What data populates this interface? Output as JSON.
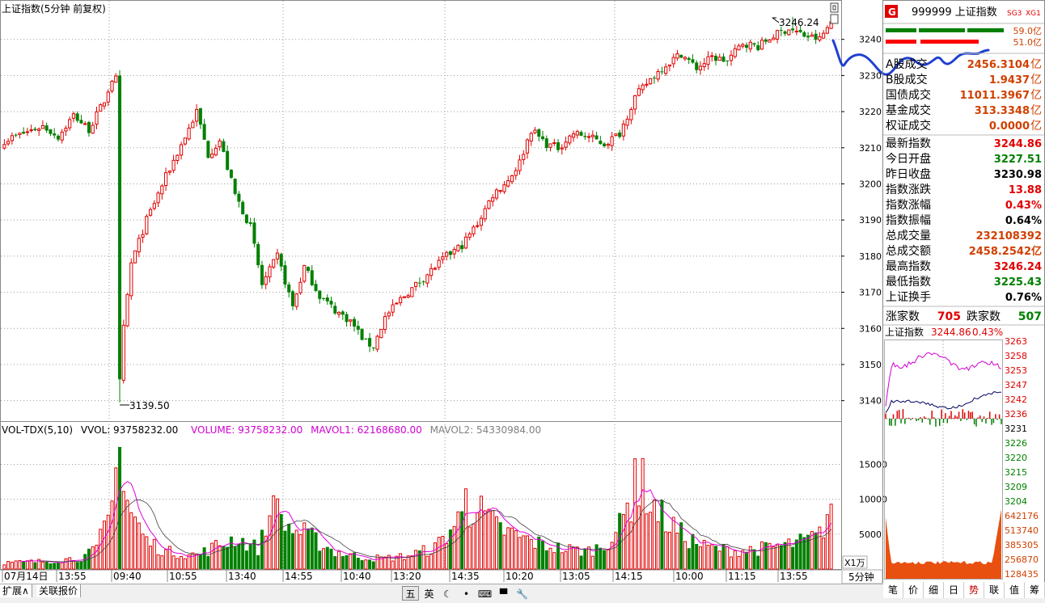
{
  "main": {
    "title": "上证指数(5分钟 前复权)",
    "high_marker": "3246.24",
    "low_marker": "3139.50",
    "period_button": "5分钟",
    "x1_label": "X1万"
  },
  "volume_header": {
    "name": "VOL-TDX(5,10)",
    "vvol": "VVOL: 93758232.00",
    "volume": "VOLUME: 93758232.00",
    "mavol1": "MAVOL1: 62168680.00",
    "mavol2": "MAVOL2: 54330984.00"
  },
  "chart_data": {
    "type": "candlestick",
    "price_axis": {
      "ticks": [
        3140,
        3150,
        3160,
        3170,
        3180,
        3190,
        3200,
        3210,
        3220,
        3230,
        3240
      ],
      "ylim": [
        3135,
        3250
      ]
    },
    "volume_axis": {
      "ticks": [
        5000,
        10000,
        15000
      ],
      "ylim": [
        0,
        19000
      ]
    },
    "time_ticks": [
      "07月14日",
      "13:55",
      "09:40",
      "10:55",
      "13:40",
      "14:55",
      "10:40",
      "13:20",
      "14:35",
      "10:20",
      "13:05",
      "14:15",
      "10:00",
      "11:15",
      "13:55"
    ],
    "anchors": [
      [
        0,
        3212
      ],
      [
        5,
        3214
      ],
      [
        10,
        3216
      ],
      [
        14,
        3213
      ],
      [
        18,
        3219
      ],
      [
        22,
        3215
      ],
      [
        26,
        3223
      ],
      [
        28,
        3229
      ],
      [
        29,
        3229
      ],
      [
        30,
        3145
      ],
      [
        31,
        3160
      ],
      [
        33,
        3178
      ],
      [
        37,
        3190
      ],
      [
        42,
        3202
      ],
      [
        47,
        3213
      ],
      [
        50,
        3220
      ],
      [
        53,
        3208
      ],
      [
        56,
        3212
      ],
      [
        60,
        3197
      ],
      [
        64,
        3188
      ],
      [
        67,
        3172
      ],
      [
        71,
        3180
      ],
      [
        75,
        3166
      ],
      [
        78,
        3177
      ],
      [
        82,
        3169
      ],
      [
        86,
        3165
      ],
      [
        90,
        3162
      ],
      [
        94,
        3156
      ],
      [
        96,
        3155
      ],
      [
        99,
        3163
      ],
      [
        103,
        3168
      ],
      [
        107,
        3172
      ],
      [
        111,
        3176
      ],
      [
        115,
        3180
      ],
      [
        119,
        3183
      ],
      [
        123,
        3189
      ],
      [
        127,
        3197
      ],
      [
        131,
        3201
      ],
      [
        134,
        3206
      ],
      [
        137,
        3215
      ],
      [
        141,
        3211
      ],
      [
        144,
        3210
      ],
      [
        148,
        3214
      ],
      [
        152,
        3213
      ],
      [
        156,
        3211
      ],
      [
        160,
        3214
      ],
      [
        164,
        3224
      ],
      [
        168,
        3229
      ],
      [
        172,
        3233
      ],
      [
        176,
        3236
      ],
      [
        180,
        3232
      ],
      [
        184,
        3235
      ],
      [
        188,
        3234
      ],
      [
        192,
        3239
      ],
      [
        196,
        3238
      ],
      [
        200,
        3241
      ],
      [
        204,
        3243
      ],
      [
        208,
        3241
      ],
      [
        212,
        3240
      ],
      [
        215,
        3244.86
      ]
    ],
    "volume_anchors": [
      [
        0,
        900
      ],
      [
        10,
        1100
      ],
      [
        20,
        1600
      ],
      [
        24,
        2800
      ],
      [
        28,
        9000
      ],
      [
        30,
        13000
      ],
      [
        33,
        8000
      ],
      [
        37,
        4000
      ],
      [
        42,
        2500
      ],
      [
        50,
        2000
      ],
      [
        56,
        3500
      ],
      [
        60,
        4500
      ],
      [
        66,
        3000
      ],
      [
        70,
        8500
      ],
      [
        74,
        6000
      ],
      [
        80,
        4500
      ],
      [
        86,
        2500
      ],
      [
        92,
        1800
      ],
      [
        98,
        1500
      ],
      [
        104,
        1800
      ],
      [
        112,
        3000
      ],
      [
        118,
        7000
      ],
      [
        122,
        9000
      ],
      [
        128,
        6000
      ],
      [
        134,
        4500
      ],
      [
        140,
        3500
      ],
      [
        146,
        2800
      ],
      [
        152,
        2600
      ],
      [
        156,
        3500
      ],
      [
        160,
        6000
      ],
      [
        163,
        10000
      ],
      [
        166,
        12000
      ],
      [
        170,
        8000
      ],
      [
        176,
        5000
      ],
      [
        182,
        3200
      ],
      [
        190,
        2600
      ],
      [
        198,
        3000
      ],
      [
        204,
        3500
      ],
      [
        208,
        4000
      ],
      [
        212,
        4800
      ],
      [
        215,
        9000
      ]
    ]
  },
  "side": {
    "badge": "G",
    "code_title": "999999 上证指数",
    "sg_tag": "SG3",
    "xg_tag": "XG1",
    "bar_rows": [
      {
        "label": "59.0亿",
        "color": "#008000",
        "segments": [
          [
            1095,
            1133
          ],
          [
            1136,
            1193
          ],
          [
            1196,
            1241
          ]
        ]
      },
      {
        "label": "51.0亿",
        "color": "#ff0000",
        "segments": [
          [
            1095,
            1133
          ],
          [
            1138,
            1210
          ]
        ]
      }
    ],
    "turnover": [
      {
        "label": "A股成交",
        "value": "2456.3104",
        "unit": "亿"
      },
      {
        "label": "B股成交",
        "value": "1.9437",
        "unit": "亿"
      },
      {
        "label": "国债成交",
        "value": "11011.3967",
        "unit": "亿"
      },
      {
        "label": "基金成交",
        "value": "313.3348",
        "unit": "亿"
      },
      {
        "label": "权证成交",
        "value": "0.0000",
        "unit": "亿"
      }
    ],
    "stats": [
      {
        "label": "最新指数",
        "value": "3244.86",
        "color": "#e00000"
      },
      {
        "label": "今日开盘",
        "value": "3227.51",
        "color": "#008000"
      },
      {
        "label": "昨日收盘",
        "value": "3230.98",
        "color": "#000000"
      },
      {
        "label": "指数涨跌",
        "value": "13.88",
        "color": "#e00000"
      },
      {
        "label": "指数涨幅",
        "value": "0.43%",
        "color": "#e00000"
      },
      {
        "label": "指数振幅",
        "value": "0.64%",
        "color": "#000000"
      },
      {
        "label": "总成交量",
        "value": "232108392",
        "color": "#d04000"
      },
      {
        "label": "总成交额",
        "value": "2458.2542亿",
        "color": "#d04000"
      },
      {
        "label": "最高指数",
        "value": "3246.24",
        "color": "#e00000"
      },
      {
        "label": "最低指数",
        "value": "3225.43",
        "color": "#008000"
      },
      {
        "label": "上证换手",
        "value": "0.76%",
        "color": "#000000"
      }
    ],
    "rise_label": "涨家数",
    "rise_value": "705",
    "fall_label": "跌家数",
    "fall_value": "507",
    "mini_title": "上证指数",
    "mini_price": "3244.86",
    "mini_pct": "0.43%",
    "mini_ticks": [
      {
        "v": "3263",
        "c": "#e00000"
      },
      {
        "v": "3258",
        "c": "#e00000"
      },
      {
        "v": "3253",
        "c": "#e00000"
      },
      {
        "v": "3247",
        "c": "#e00000"
      },
      {
        "v": "3242",
        "c": "#e00000"
      },
      {
        "v": "3236",
        "c": "#e00000"
      },
      {
        "v": "3231",
        "c": "#000000"
      },
      {
        "v": "3226",
        "c": "#008000"
      },
      {
        "v": "3220",
        "c": "#008000"
      },
      {
        "v": "3215",
        "c": "#008000"
      },
      {
        "v": "3209",
        "c": "#008000"
      },
      {
        "v": "3204",
        "c": "#008000"
      },
      {
        "v": "642176",
        "c": "#d04000"
      },
      {
        "v": "513740",
        "c": "#d04000"
      },
      {
        "v": "385305",
        "c": "#d04000"
      },
      {
        "v": "256870",
        "c": "#d04000"
      },
      {
        "v": "128435",
        "c": "#d04000"
      }
    ],
    "tabs": [
      "笔",
      "价",
      "细",
      "日",
      "势",
      "联",
      "值",
      "筹"
    ],
    "active_tab": 4
  },
  "bottom": {
    "tab1": "扩展∧",
    "tab2": "关联报价",
    "tools": [
      "五",
      "英",
      "☾",
      "•",
      "⌨",
      "▀",
      "🔧"
    ]
  },
  "colors": {
    "up": "#e00000",
    "down": "#008000",
    "ma1": "#e000e0",
    "ma2": "#404040",
    "grid": "#999999",
    "frame": "#888888"
  }
}
